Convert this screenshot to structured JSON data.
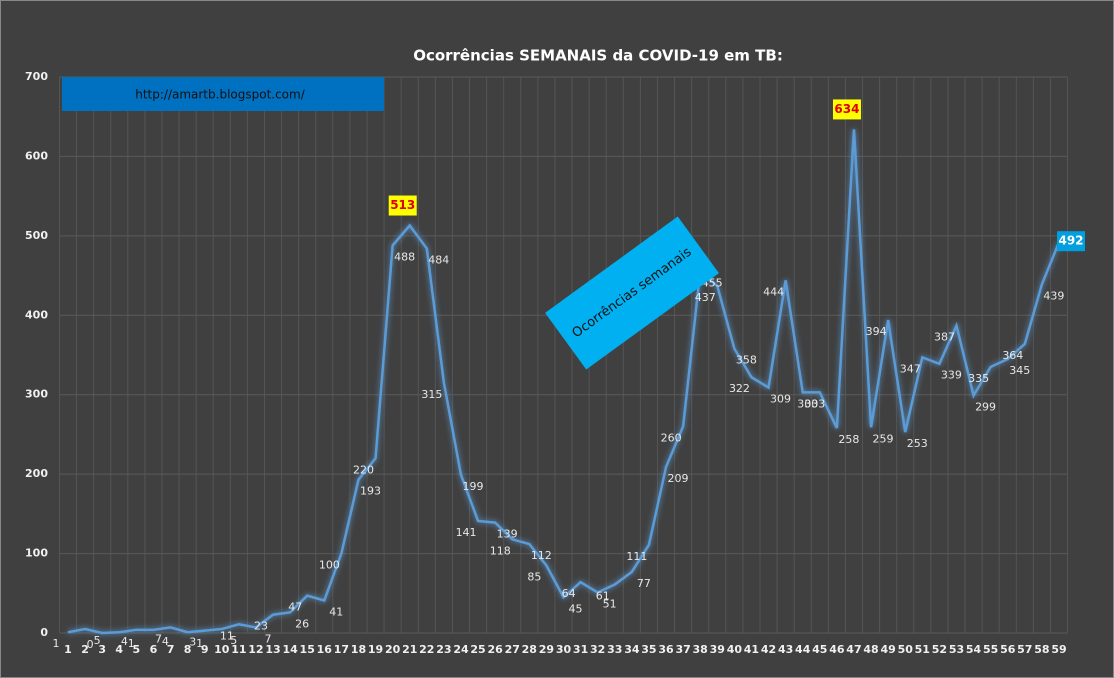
{
  "chart_data": {
    "type": "line",
    "title": "Ocorrências SEMANAIS da COVID-19 em TB:",
    "annotations": [
      "http://amartb.blogspot.com/",
      "Ocorrências semanais"
    ],
    "categories": [
      "1",
      "2",
      "3",
      "4",
      "5",
      "6",
      "7",
      "8",
      "9",
      "10",
      "11",
      "12",
      "13",
      "14",
      "15",
      "16",
      "17",
      "18",
      "19",
      "20",
      "21",
      "22",
      "23",
      "24",
      "25",
      "26",
      "27",
      "28",
      "29",
      "30",
      "31",
      "32",
      "33",
      "34",
      "35",
      "36",
      "37",
      "38",
      "39",
      "40",
      "41",
      "42",
      "43",
      "44",
      "45",
      "46",
      "47",
      "48",
      "49",
      "50",
      "51",
      "52",
      "53",
      "54",
      "55",
      "56",
      "57",
      "58",
      "59"
    ],
    "series": [
      {
        "name": "Ocorrências semanais",
        "color": "#5b9bd5",
        "values": [
          1,
          5,
          0,
          1,
          4,
          4,
          7,
          1,
          3,
          5,
          11,
          7,
          23,
          26,
          47,
          41,
          100,
          193,
          220,
          488,
          513,
          484,
          315,
          199,
          141,
          139,
          118,
          112,
          85,
          45,
          64,
          51,
          61,
          77,
          111,
          209,
          260,
          455,
          437,
          358,
          322,
          309,
          444,
          303,
          303,
          258,
          634,
          259,
          394,
          253,
          347,
          339,
          387,
          299,
          335,
          345,
          364,
          439,
          492
        ]
      }
    ],
    "ylim": [
      0,
      700
    ],
    "yticks": [
      0,
      100,
      200,
      300,
      400,
      500,
      600,
      700
    ],
    "grid": true
  }
}
